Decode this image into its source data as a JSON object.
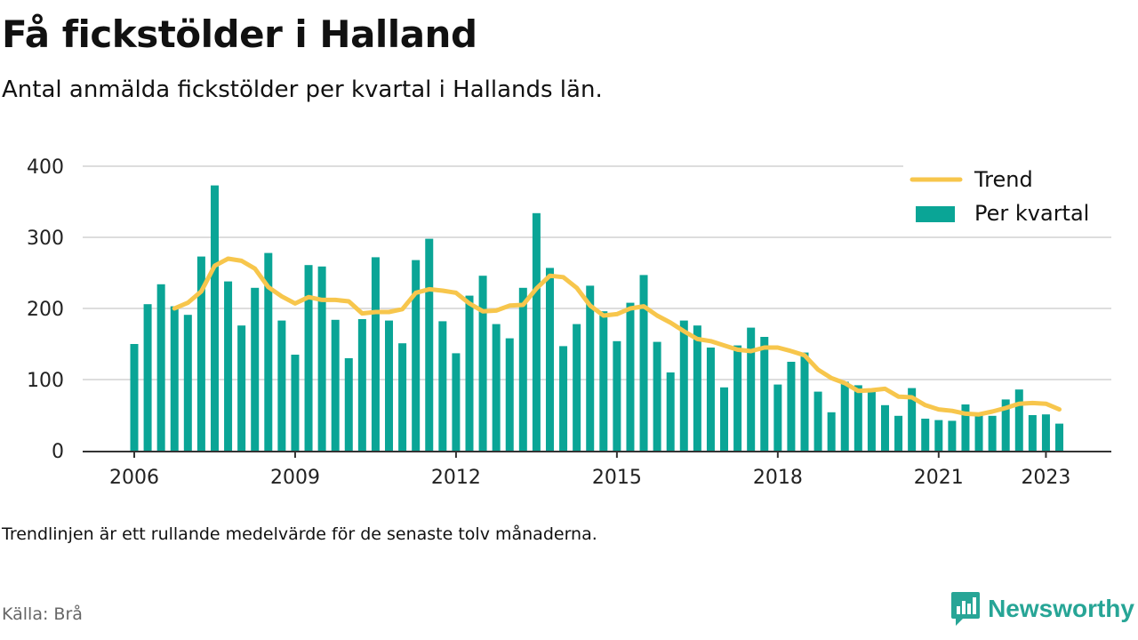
{
  "header": {
    "title": "Få fickstölder i Halland",
    "subtitle": "Antal anmälda fickstölder per kvartal i Hallands län."
  },
  "footer": {
    "note": "Trendlinjen är ett rullande medelvärde för de senaste tolv månaderna.",
    "source": "Källa: Brå",
    "brand": "Newsworthy"
  },
  "colors": {
    "bars": "#0aa596",
    "trend": "#f7c64c",
    "grid": "#dddddd",
    "axis": "#333333",
    "brand": "#27a596"
  },
  "chart_data": {
    "type": "bar",
    "start": "2006 Q1",
    "categories": [
      "2006 Q1",
      "2006 Q2",
      "2006 Q3",
      "2006 Q4",
      "2007 Q1",
      "2007 Q2",
      "2007 Q3",
      "2007 Q4",
      "2008 Q1",
      "2008 Q2",
      "2008 Q3",
      "2008 Q4",
      "2009 Q1",
      "2009 Q2",
      "2009 Q3",
      "2009 Q4",
      "2010 Q1",
      "2010 Q2",
      "2010 Q3",
      "2010 Q4",
      "2011 Q1",
      "2011 Q2",
      "2011 Q3",
      "2011 Q4",
      "2012 Q1",
      "2012 Q2",
      "2012 Q3",
      "2012 Q4",
      "2013 Q1",
      "2013 Q2",
      "2013 Q3",
      "2013 Q4",
      "2014 Q1",
      "2014 Q2",
      "2014 Q3",
      "2014 Q4",
      "2015 Q1",
      "2015 Q2",
      "2015 Q3",
      "2015 Q4",
      "2016 Q1",
      "2016 Q2",
      "2016 Q3",
      "2016 Q4",
      "2017 Q1",
      "2017 Q2",
      "2017 Q3",
      "2017 Q4",
      "2018 Q1",
      "2018 Q2",
      "2018 Q3",
      "2018 Q4",
      "2019 Q1",
      "2019 Q2",
      "2019 Q3",
      "2019 Q4",
      "2020 Q1",
      "2020 Q2",
      "2020 Q3",
      "2020 Q4",
      "2021 Q1",
      "2021 Q2",
      "2021 Q3",
      "2021 Q4",
      "2022 Q1",
      "2022 Q2",
      "2022 Q3",
      "2022 Q4",
      "2023 Q1",
      "2023 Q2"
    ],
    "series": [
      {
        "name": "Per kvartal",
        "kind": "bar",
        "values": [
          150,
          206,
          234,
          203,
          191,
          273,
          373,
          238,
          176,
          229,
          278,
          183,
          135,
          261,
          259,
          184,
          130,
          185,
          272,
          183,
          151,
          268,
          298,
          182,
          137,
          218,
          246,
          178,
          158,
          229,
          334,
          257,
          147,
          178,
          232,
          196,
          154,
          208,
          247,
          153,
          110,
          183,
          176,
          145,
          89,
          148,
          173,
          160,
          93,
          125,
          138,
          83,
          54,
          97,
          92,
          85,
          64,
          49,
          88,
          45,
          43,
          42,
          65,
          50,
          49,
          72,
          86,
          50,
          51,
          38
        ]
      },
      {
        "name": "Trend",
        "kind": "line",
        "values": [
          null,
          null,
          null,
          200,
          208,
          224,
          260,
          270,
          267,
          256,
          230,
          217,
          207,
          216,
          212,
          212,
          210,
          193,
          195,
          195,
          199,
          222,
          227,
          225,
          222,
          207,
          196,
          197,
          204,
          205,
          228,
          246,
          244,
          229,
          204,
          190,
          192,
          200,
          203,
          190,
          180,
          168,
          157,
          154,
          148,
          142,
          140,
          145,
          145,
          140,
          134,
          114,
          102,
          95,
          84,
          85,
          87,
          76,
          75,
          64,
          58,
          56,
          52,
          51,
          55,
          60,
          66,
          67,
          66,
          58
        ]
      }
    ],
    "x_ticks": [
      "2006",
      "2009",
      "2012",
      "2015",
      "2018",
      "2021",
      "2023"
    ],
    "y_ticks": [
      0,
      100,
      200,
      300,
      400
    ],
    "ylim": [
      0,
      400
    ],
    "grid": true,
    "legend": "top-right",
    "xlabel": "",
    "ylabel": ""
  }
}
